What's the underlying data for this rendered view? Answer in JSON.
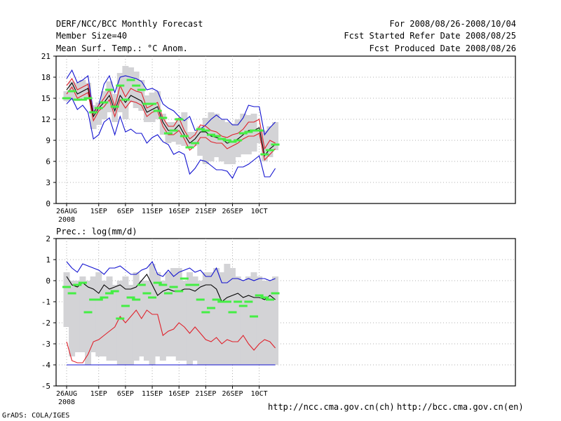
{
  "header": {
    "title": "DERF/NCC/BCC Monthly Forecast",
    "member_size": "Member Size=40",
    "variable1": "Mean Surf. Temp.: °C Anom.",
    "period": "For 2008/08/26-2008/10/04",
    "start_date": "Fcst Started Refer Date 2008/08/25",
    "produced_date": "Fcst Produced Date 2008/08/26"
  },
  "footer": {
    "url_ncc": "http://ncc.cma.gov.cn(ch)",
    "url_bcc": "http://bcc.cma.gov.cn(en)",
    "grads": "GrADS: COLA/IGES"
  },
  "colors": {
    "bar": "#d3d3d6",
    "mean": "#000000",
    "inner": "#e0202a",
    "outer": "#1010d0",
    "obs": "#44ee44"
  },
  "chart_data": [
    {
      "type": "line",
      "title": "Mean Surf. Temp.: °C Anom.",
      "x_tick_labels": [
        "26AUG",
        "1SEP",
        "6SEP",
        "11SEP",
        "16SEP",
        "21SEP",
        "26SEP",
        "10CT"
      ],
      "x_tick_days": [
        1,
        7,
        12,
        17,
        22,
        27,
        32,
        37
      ],
      "x_year_label": "2008",
      "ylim": [
        0,
        21
      ],
      "y_ticks": [
        0,
        3,
        6,
        9,
        12,
        15,
        18,
        21
      ],
      "grid": true,
      "days": [
        1,
        2,
        3,
        4,
        5,
        6,
        7,
        8,
        9,
        10,
        11,
        12,
        13,
        14,
        15,
        16,
        17,
        18,
        19,
        20,
        21,
        22,
        23,
        24,
        25,
        26,
        27,
        28,
        29,
        30,
        31,
        32,
        33,
        34,
        35,
        36,
        37,
        38,
        39,
        40
      ],
      "bars_low": [
        14.6,
        14.8,
        14.6,
        15.0,
        14.8,
        10.6,
        11.2,
        12.0,
        13.0,
        11.6,
        13.0,
        12.0,
        14.4,
        13.6,
        13.2,
        11.6,
        11.6,
        12.0,
        9.8,
        8.6,
        8.8,
        8.4,
        8.2,
        8.0,
        8.2,
        6.8,
        5.6,
        6.0,
        6.6,
        6.0,
        5.6,
        5.6,
        6.6,
        7.0,
        7.0,
        7.4,
        8.6,
        6.0,
        6.6,
        7.6
      ],
      "bars_high": [
        16.0,
        17.4,
        17.2,
        17.6,
        17.2,
        14.0,
        14.4,
        16.0,
        17.4,
        15.6,
        18.6,
        19.6,
        19.4,
        18.8,
        17.6,
        15.4,
        15.8,
        16.0,
        12.8,
        11.6,
        11.6,
        12.2,
        13.0,
        10.2,
        10.2,
        11.0,
        12.2,
        13.0,
        12.8,
        12.0,
        11.6,
        11.4,
        12.0,
        12.8,
        12.6,
        12.8,
        10.4,
        10.4,
        11.0,
        11.6
      ],
      "series": [
        {
          "name": "max",
          "color": "outer",
          "values": [
            17.8,
            19.0,
            17.2,
            17.6,
            18.2,
            13.0,
            14.0,
            17.0,
            18.2,
            15.8,
            18.0,
            18.2,
            18.0,
            17.8,
            17.4,
            16.2,
            16.4,
            16.0,
            14.2,
            13.6,
            13.2,
            12.4,
            11.8,
            12.4,
            10.4,
            10.6,
            11.2,
            12.0,
            12.6,
            12.0,
            12.0,
            11.2,
            11.2,
            12.2,
            14.0,
            13.8,
            13.8,
            9.8,
            10.8,
            11.6
          ]
        },
        {
          "name": "upper",
          "color": "inner",
          "values": [
            16.8,
            17.8,
            16.2,
            16.6,
            17.0,
            12.8,
            14.0,
            15.0,
            16.2,
            13.8,
            16.8,
            15.2,
            16.4,
            16.0,
            15.8,
            13.6,
            14.0,
            14.4,
            12.2,
            11.0,
            11.0,
            12.2,
            10.4,
            9.2,
            9.8,
            11.2,
            11.0,
            10.4,
            10.2,
            9.6,
            9.4,
            9.8,
            10.0,
            10.6,
            11.6,
            11.6,
            12.0,
            7.8,
            9.0,
            8.6
          ]
        },
        {
          "name": "mean",
          "color": "mean",
          "values": [
            16.2,
            17.2,
            15.6,
            16.0,
            16.4,
            12.4,
            13.6,
            14.4,
            15.4,
            13.2,
            15.4,
            14.4,
            15.4,
            15.0,
            14.6,
            13.0,
            13.4,
            13.8,
            11.6,
            10.4,
            10.4,
            11.2,
            9.8,
            8.6,
            9.2,
            10.2,
            10.2,
            9.6,
            9.4,
            9.2,
            8.6,
            8.8,
            9.2,
            9.8,
            10.4,
            10.4,
            10.8,
            6.8,
            7.8,
            8.4
          ]
        },
        {
          "name": "lower",
          "color": "inner",
          "values": [
            15.6,
            16.6,
            15.0,
            15.4,
            15.8,
            11.8,
            13.2,
            13.8,
            14.8,
            12.4,
            14.8,
            13.6,
            14.6,
            14.4,
            14.0,
            12.4,
            13.0,
            13.2,
            11.0,
            9.8,
            9.8,
            10.4,
            9.2,
            7.6,
            8.2,
            9.4,
            9.4,
            8.8,
            8.6,
            8.6,
            7.8,
            8.2,
            8.6,
            9.2,
            9.6,
            9.6,
            10.0,
            6.2,
            7.0,
            7.8
          ]
        },
        {
          "name": "min",
          "color": "outer",
          "values": [
            14.2,
            15.0,
            13.4,
            14.0,
            13.0,
            9.2,
            9.8,
            11.6,
            12.2,
            9.8,
            12.4,
            10.2,
            10.6,
            10.0,
            10.0,
            8.6,
            9.4,
            9.8,
            8.8,
            8.4,
            7.0,
            7.4,
            7.0,
            4.2,
            5.0,
            6.2,
            6.0,
            5.4,
            4.8,
            4.8,
            4.6,
            3.6,
            5.2,
            5.2,
            5.6,
            6.2,
            6.8,
            3.8,
            3.8,
            5.0
          ]
        }
      ],
      "observed": [
        15.0,
        16.0,
        14.8,
        14.8,
        15.0,
        13.0,
        13.6,
        14.4,
        16.2,
        13.8,
        16.8,
        14.8,
        17.6,
        16.8,
        16.2,
        14.2,
        14.2,
        13.2,
        12.2,
        10.0,
        10.4,
        12.0,
        9.6,
        8.0,
        8.6,
        10.6,
        10.4,
        9.8,
        9.6,
        9.2,
        9.0,
        8.8,
        9.0,
        10.0,
        10.2,
        10.4,
        10.4,
        7.0,
        7.6,
        8.4
      ]
    },
    {
      "type": "line",
      "title": "Prec.: log(mm/d)",
      "x_tick_labels": [
        "26AUG",
        "1SEP",
        "6SEP",
        "11SEP",
        "16SEP",
        "21SEP",
        "26SEP",
        "10CT"
      ],
      "x_tick_days": [
        1,
        7,
        12,
        17,
        22,
        27,
        32,
        37
      ],
      "x_year_label": "2008",
      "ylim": [
        -5,
        2
      ],
      "y_ticks": [
        -5,
        -4,
        -3,
        -2,
        -1,
        0,
        1,
        2
      ],
      "grid": true,
      "days": [
        1,
        2,
        3,
        4,
        5,
        6,
        7,
        8,
        9,
        10,
        11,
        12,
        13,
        14,
        15,
        16,
        17,
        18,
        19,
        20,
        21,
        22,
        23,
        24,
        25,
        26,
        27,
        28,
        29,
        30,
        31,
        32,
        33,
        34,
        35,
        36,
        37,
        38,
        39,
        40
      ],
      "bars_low": [
        -2.2,
        -3.6,
        -3.4,
        -3.4,
        -4.0,
        -3.4,
        -3.6,
        -3.6,
        -3.8,
        -3.8,
        -4.0,
        -4.0,
        -4.0,
        -3.8,
        -3.6,
        -3.8,
        -4.0,
        -3.6,
        -3.8,
        -3.6,
        -3.6,
        -3.8,
        -3.8,
        -4.0,
        -3.8,
        -4.0,
        -4.0,
        -4.0,
        -4.0,
        -4.0,
        -4.0,
        -4.0,
        -4.0,
        -4.0,
        -4.0,
        -4.0,
        -4.0,
        -4.0,
        -4.0,
        -4.0
      ],
      "bars_high": [
        0.4,
        0.0,
        0.0,
        0.2,
        0.0,
        0.2,
        0.4,
        0.0,
        0.2,
        -0.2,
        0.0,
        0.2,
        -0.2,
        0.4,
        0.0,
        0.0,
        0.8,
        0.4,
        0.0,
        0.4,
        0.6,
        0.6,
        0.0,
        0.4,
        0.2,
        0.0,
        0.4,
        0.4,
        0.6,
        0.4,
        0.8,
        0.6,
        0.2,
        0.0,
        0.2,
        0.4,
        0.2,
        0.0,
        0.0,
        0.2
      ],
      "series": [
        {
          "name": "max",
          "color": "outer",
          "values": [
            0.9,
            0.6,
            0.4,
            0.8,
            0.7,
            0.6,
            0.5,
            0.3,
            0.6,
            0.6,
            0.7,
            0.5,
            0.3,
            0.3,
            0.5,
            0.6,
            0.9,
            0.3,
            0.2,
            0.5,
            0.2,
            0.4,
            0.5,
            0.6,
            0.4,
            0.5,
            0.2,
            0.2,
            0.6,
            -0.1,
            -0.1,
            0.1,
            0.1,
            0.0,
            0.1,
            0.0,
            0.1,
            0.1,
            0.0,
            0.1
          ]
        },
        {
          "name": "upper",
          "color": "mean",
          "values": [
            0.2,
            -0.2,
            -0.3,
            -0.1,
            -0.3,
            -0.4,
            -0.6,
            -0.2,
            -0.4,
            -0.3,
            -0.2,
            -0.4,
            -0.4,
            -0.3,
            0.0,
            0.3,
            -0.2,
            -0.7,
            -0.5,
            -0.4,
            -0.5,
            -0.5,
            -0.4,
            -0.4,
            -0.5,
            -0.3,
            -0.2,
            -0.2,
            -0.4,
            -1.0,
            -0.8,
            -0.7,
            -0.6,
            -0.8,
            -0.7,
            -0.8,
            -0.8,
            -0.9,
            -0.7,
            -0.9
          ]
        },
        {
          "name": "lower",
          "color": "inner",
          "values": [
            -2.9,
            -3.8,
            -3.9,
            -3.9,
            -3.5,
            -2.9,
            -2.8,
            -2.6,
            -2.4,
            -2.2,
            -1.7,
            -2.0,
            -1.7,
            -1.4,
            -1.8,
            -1.4,
            -1.6,
            -1.6,
            -2.6,
            -2.4,
            -2.3,
            -2.0,
            -2.2,
            -2.5,
            -2.2,
            -2.5,
            -2.8,
            -2.9,
            -2.7,
            -3.0,
            -2.8,
            -2.9,
            -2.9,
            -2.6,
            -3.0,
            -3.3,
            -3.0,
            -2.8,
            -2.9,
            -3.2
          ]
        }
      ],
      "floor_line": {
        "name": "min",
        "color": "outer",
        "from_day": 1,
        "to_day": 40,
        "value": -4.0
      },
      "observed": [
        -0.3,
        -0.6,
        -0.2,
        -0.1,
        -1.5,
        -0.9,
        -0.9,
        -0.8,
        -0.6,
        -0.5,
        -1.8,
        -1.2,
        -0.8,
        -0.9,
        -0.2,
        -0.6,
        -0.8,
        -0.1,
        -0.2,
        -0.6,
        -0.3,
        -0.5,
        0.1,
        -0.2,
        -0.2,
        -0.9,
        -1.5,
        -1.3,
        -0.9,
        -1.0,
        -1.0,
        -1.5,
        -1.0,
        -1.2,
        -1.0,
        -1.7,
        -0.7,
        -0.8,
        -0.9,
        -0.6
      ]
    }
  ]
}
